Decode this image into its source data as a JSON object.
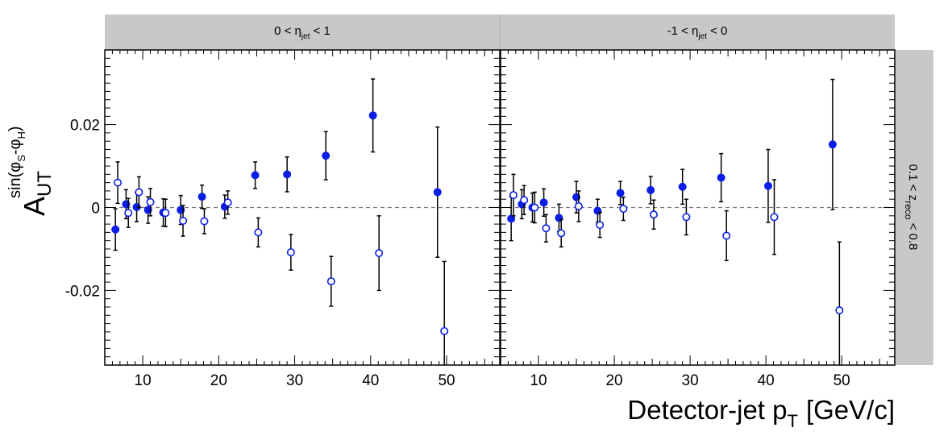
{
  "chart_data": {
    "type": "scatter",
    "xlabel": "Detector-jet p",
    "xlabel_sub": "T",
    "xlabel_units": "[GeV/c]",
    "ylabel": {
      "base": "A",
      "sub": "UT",
      "sup_prefix": "sin(φ",
      "sup_sub1": "S",
      "sup_mid": "-φ",
      "sup_sub2": "H",
      "sup_suffix": ")"
    },
    "right_strip": {
      "prefix": "0.1 < z",
      "sub": "reco",
      "suffix": " < 0.8"
    },
    "xlim": [
      5,
      57
    ],
    "ylim": [
      -0.038,
      0.038
    ],
    "x_ticks": [
      10,
      20,
      30,
      40,
      50
    ],
    "y_ticks": [
      0.02,
      0,
      -0.02
    ],
    "y_tick_labels": [
      "0.02",
      "0",
      "-0.02"
    ],
    "reference_line": 0,
    "colors": {
      "filled": "#0a1ee6",
      "open": "#0a1ee6",
      "errorbar": "#000000",
      "strip": "#c8c8c8"
    },
    "panels": [
      {
        "strip": {
          "prefix": "0 < η",
          "sub": "jet",
          "suffix": " < 1"
        },
        "series": [
          {
            "marker": "filled",
            "points": [
              {
                "x": 6.4,
                "y": -0.0053,
                "err": 0.005
              },
              {
                "x": 7.8,
                "y": 0.0008,
                "err": 0.0035
              },
              {
                "x": 9.2,
                "y": 0.0001,
                "err": 0.0035
              },
              {
                "x": 10.7,
                "y": -0.0006,
                "err": 0.0032
              },
              {
                "x": 12.7,
                "y": -0.0012,
                "err": 0.0033
              },
              {
                "x": 15.0,
                "y": -0.0006,
                "err": 0.0035
              },
              {
                "x": 17.8,
                "y": 0.0026,
                "err": 0.0028
              },
              {
                "x": 20.8,
                "y": 0.0002,
                "err": 0.0028
              },
              {
                "x": 24.8,
                "y": 0.0078,
                "err": 0.0032
              },
              {
                "x": 29.0,
                "y": 0.008,
                "err": 0.0042
              },
              {
                "x": 34.1,
                "y": 0.0125,
                "err": 0.0058
              },
              {
                "x": 40.3,
                "y": 0.0222,
                "err": 0.0088
              },
              {
                "x": 48.8,
                "y": 0.0037,
                "err": 0.0157
              }
            ]
          },
          {
            "marker": "open",
            "points": [
              {
                "x": 6.7,
                "y": 0.006,
                "err": 0.005
              },
              {
                "x": 8.1,
                "y": -0.0013,
                "err": 0.0035
              },
              {
                "x": 9.5,
                "y": 0.0037,
                "err": 0.0037
              },
              {
                "x": 11.0,
                "y": 0.0013,
                "err": 0.0033
              },
              {
                "x": 13.0,
                "y": -0.0013,
                "err": 0.0033
              },
              {
                "x": 15.3,
                "y": -0.0032,
                "err": 0.0037
              },
              {
                "x": 18.1,
                "y": -0.0033,
                "err": 0.003
              },
              {
                "x": 21.2,
                "y": 0.0012,
                "err": 0.0028
              },
              {
                "x": 25.2,
                "y": -0.006,
                "err": 0.0035
              },
              {
                "x": 29.5,
                "y": -0.0108,
                "err": 0.0043
              },
              {
                "x": 34.8,
                "y": -0.0178,
                "err": 0.006
              },
              {
                "x": 41.1,
                "y": -0.011,
                "err": 0.009
              },
              {
                "x": 49.7,
                "y": -0.0298,
                "err": 0.0168
              }
            ]
          }
        ]
      },
      {
        "strip": {
          "prefix": "-1 < η",
          "sub": "jet",
          "suffix": " < 0"
        },
        "series": [
          {
            "marker": "filled",
            "points": [
              {
                "x": 6.4,
                "y": -0.0027,
                "err": 0.0053
              },
              {
                "x": 7.8,
                "y": 0.0008,
                "err": 0.0035
              },
              {
                "x": 9.2,
                "y": 0.0,
                "err": 0.0035
              },
              {
                "x": 10.7,
                "y": 0.0012,
                "err": 0.0033
              },
              {
                "x": 12.7,
                "y": -0.0025,
                "err": 0.0033
              },
              {
                "x": 15.0,
                "y": 0.0025,
                "err": 0.0038
              },
              {
                "x": 17.8,
                "y": -0.0008,
                "err": 0.0028
              },
              {
                "x": 20.8,
                "y": 0.0035,
                "err": 0.0028
              },
              {
                "x": 24.8,
                "y": 0.0042,
                "err": 0.0033
              },
              {
                "x": 29.0,
                "y": 0.005,
                "err": 0.0042
              },
              {
                "x": 34.1,
                "y": 0.0072,
                "err": 0.0058
              },
              {
                "x": 40.3,
                "y": 0.0052,
                "err": 0.0088
              },
              {
                "x": 48.8,
                "y": 0.0152,
                "err": 0.0157
              }
            ]
          },
          {
            "marker": "open",
            "points": [
              {
                "x": 6.7,
                "y": 0.003,
                "err": 0.005
              },
              {
                "x": 8.1,
                "y": 0.0018,
                "err": 0.0035
              },
              {
                "x": 9.5,
                "y": 0.0,
                "err": 0.0037
              },
              {
                "x": 11.0,
                "y": -0.005,
                "err": 0.0033
              },
              {
                "x": 13.0,
                "y": -0.0062,
                "err": 0.0033
              },
              {
                "x": 15.3,
                "y": 0.0003,
                "err": 0.0037
              },
              {
                "x": 18.1,
                "y": -0.0042,
                "err": 0.003
              },
              {
                "x": 21.2,
                "y": -0.0003,
                "err": 0.0028
              },
              {
                "x": 25.2,
                "y": -0.0017,
                "err": 0.0035
              },
              {
                "x": 29.5,
                "y": -0.0023,
                "err": 0.0043
              },
              {
                "x": 34.8,
                "y": -0.0068,
                "err": 0.006
              },
              {
                "x": 41.1,
                "y": -0.0023,
                "err": 0.009
              },
              {
                "x": 49.7,
                "y": -0.0248,
                "err": 0.0165
              }
            ]
          }
        ]
      }
    ]
  }
}
